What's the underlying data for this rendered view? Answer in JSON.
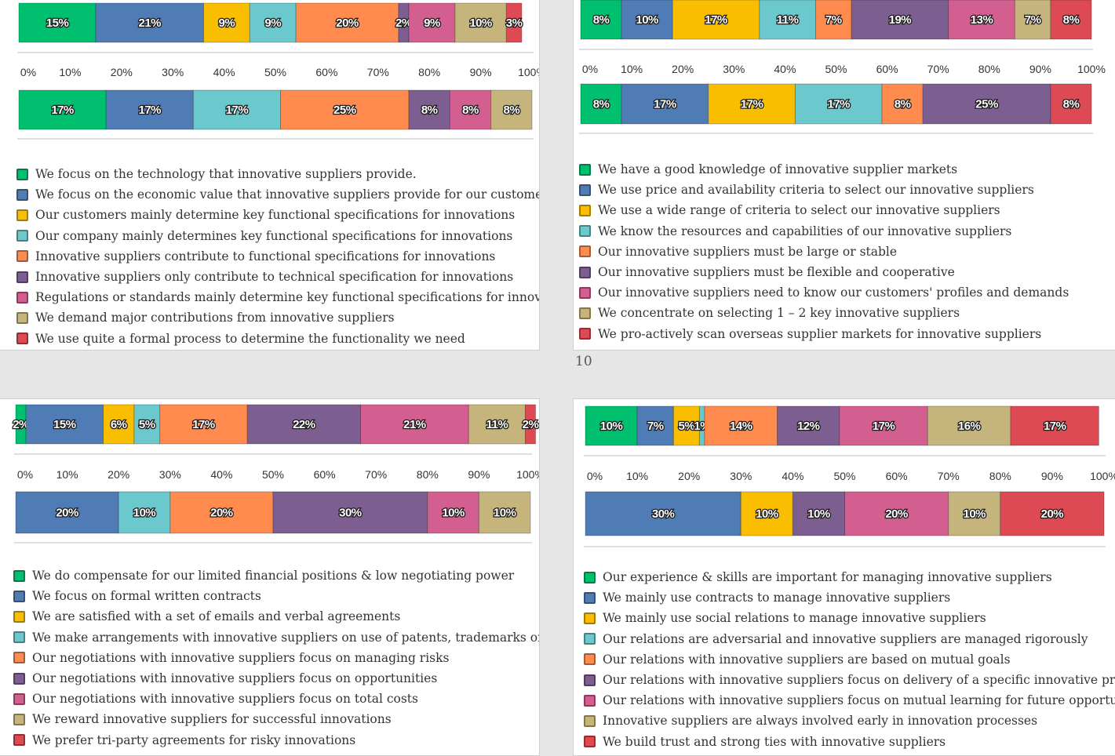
{
  "page_number": "10",
  "colors": [
    "#00bf6f",
    "#507cb6",
    "#f9be00",
    "#6bc8cd",
    "#ff8b4f",
    "#7d5e90",
    "#d25f90",
    "#c5b57c",
    "#dd4a54"
  ],
  "ticks": [
    "0%",
    "10%",
    "20%",
    "30%",
    "40%",
    "50%",
    "60%",
    "70%",
    "80%",
    "90%",
    "100%"
  ],
  "chart_data": [
    {
      "type": "bar",
      "orientation": "horizontal",
      "stacked": "percent",
      "series_names": [
        "We focus on the technology that innovative suppliers provide.",
        "We focus on the economic value that innovative suppliers provide for our customers",
        "Our customers mainly determine key functional specifications for innovations",
        "Our company mainly determines key functional specifications for innovations",
        "Innovative suppliers contribute to functional specifications for innovations",
        "Innovative suppliers only contribute to technical specification for innovations",
        "Regulations or standards mainly determine key functional specifications for innovatio",
        "We demand major contributions from innovative suppliers",
        "We use quite a formal process to determine the functionality we need"
      ],
      "bars": [
        {
          "values": [
            15,
            21,
            9,
            9,
            20,
            2,
            9,
            10,
            3
          ]
        },
        {
          "values": [
            17,
            17,
            0,
            17,
            25,
            8,
            8,
            8,
            0
          ]
        }
      ],
      "xlim": [
        0,
        100
      ]
    },
    {
      "type": "bar",
      "orientation": "horizontal",
      "stacked": "percent",
      "series_names": [
        "We have a good knowledge of innovative supplier markets",
        "We use price and availability criteria to select our innovative suppliers",
        "We use a wide range of criteria to select our innovative suppliers",
        "We know the resources and capabilities of our innovative suppliers",
        "Our innovative suppliers must be large or stable",
        "Our innovative suppliers must be flexible and cooperative",
        "Our innovative suppliers need to know our customers' profiles and demands",
        "We concentrate on selecting 1 – 2 key innovative suppliers",
        "We pro-actively scan overseas supplier markets for innovative suppliers"
      ],
      "bars": [
        {
          "values": [
            8,
            10,
            17,
            11,
            7,
            19,
            13,
            7,
            8
          ]
        },
        {
          "values": [
            8,
            17,
            17,
            17,
            8,
            25,
            0,
            0,
            8
          ]
        }
      ],
      "xlim": [
        0,
        100
      ]
    },
    {
      "type": "bar",
      "orientation": "horizontal",
      "stacked": "percent",
      "series_names": [
        "We do compensate for our limited financial positions & low negotiating power",
        "We focus on formal written contracts",
        "We are satisfied with a set of emails and verbal agreements",
        "We make arrangements with innovative suppliers on use of patents, trademarks or tra",
        "Our negotiations with innovative suppliers focus on managing risks",
        "Our negotiations with innovative suppliers focus on opportunities",
        "Our negotiations with innovative suppliers focus on total costs",
        "We reward innovative suppliers for successful innovations",
        "We prefer tri-party agreements for risky innovations"
      ],
      "bars": [
        {
          "values": [
            2,
            15,
            6,
            5,
            17,
            22,
            21,
            11,
            2
          ]
        },
        {
          "values": [
            0,
            20,
            0,
            10,
            20,
            30,
            10,
            10,
            0
          ]
        }
      ],
      "xlim": [
        0,
        100
      ]
    },
    {
      "type": "bar",
      "orientation": "horizontal",
      "stacked": "percent",
      "series_names": [
        "Our experience & skills are important for managing innovative suppliers",
        "We mainly use contracts to manage innovative suppliers",
        "We mainly use social relations to manage innovative suppliers",
        "Our relations are adversarial and innovative suppliers are managed rigorously",
        "Our relations with innovative suppliers are based on mutual goals",
        "Our relations with innovative suppliers focus on delivery of a specific innovative produ",
        "Our relations with innovative suppliers focus on mutual learning for future opportuniti",
        "Innovative suppliers are always involved early in innovation processes",
        "We build trust and strong ties with innovative suppliers"
      ],
      "bars": [
        {
          "values": [
            10,
            7,
            5,
            1,
            14,
            12,
            17,
            16,
            17
          ]
        },
        {
          "values": [
            0,
            30,
            10,
            0,
            0,
            10,
            20,
            10,
            20
          ]
        }
      ],
      "xlim": [
        0,
        100
      ]
    }
  ]
}
